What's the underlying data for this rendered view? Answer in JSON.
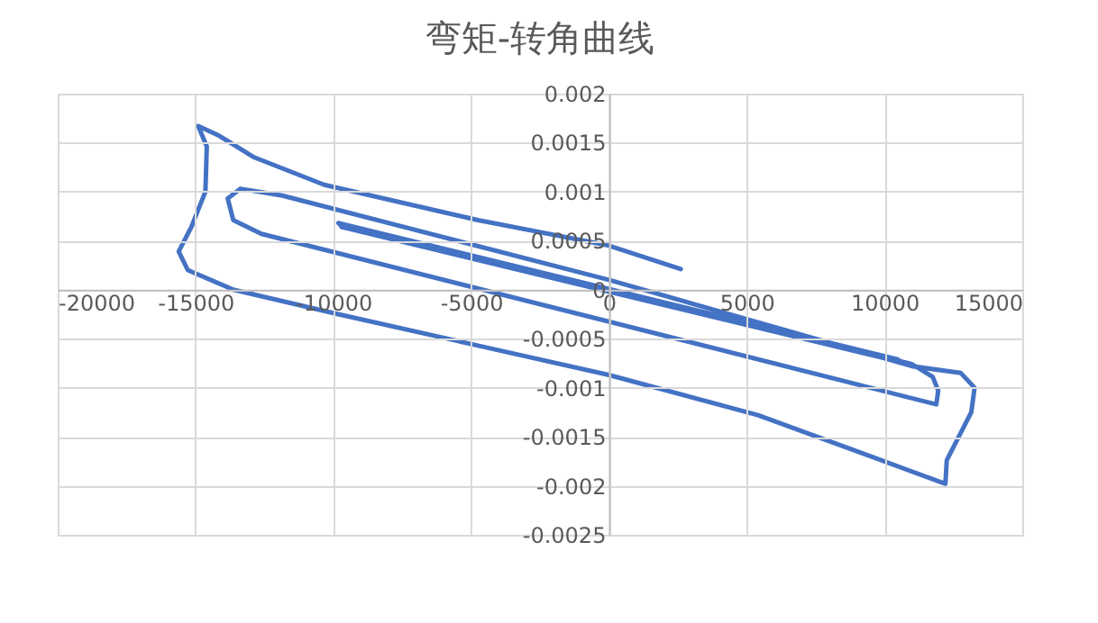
{
  "chart_data": {
    "type": "line",
    "title": "弯矩-转角曲线",
    "x": [
      0,
      10480,
      -9820,
      10740,
      -9700,
      10600,
      -9750,
      11000,
      11750,
      11950,
      11880,
      -12610,
      -13630,
      -13830,
      -13370,
      -11850,
      0,
      10990,
      12770,
      13270,
      13150,
      12640,
      12260,
      12210,
      9210,
      5410,
      0,
      -4750,
      -9820,
      -13630,
      -15280,
      -15610,
      -15150,
      -14640,
      -14590,
      -14900,
      -14140,
      -12870,
      -10330,
      -4750,
      0,
      2610
    ],
    "series": [
      {
        "color": "#4472c4",
        "values": [
          0,
          -0.00071,
          0.00068,
          -0.00075,
          0.00064,
          -0.00073,
          0.00066,
          -0.00076,
          -0.00089,
          -0.00103,
          -0.00117,
          0.00057,
          0.00071,
          0.00093,
          0.00103,
          0.00096,
          0.0001,
          -0.00078,
          -0.00085,
          -0.001,
          -0.00125,
          -0.00153,
          -0.00174,
          -0.00198,
          -0.00167,
          -0.00128,
          -0.00087,
          -0.00057,
          -0.00025,
          0,
          0.0002,
          0.00039,
          0.00064,
          0.001,
          0.00146,
          0.00167,
          0.00157,
          0.00135,
          0.00107,
          0.00071,
          0.00045,
          0.00021
        ]
      }
    ],
    "xlim": [
      -20000,
      15000
    ],
    "xticks": [
      -20000,
      -15000,
      -10000,
      -5000,
      0,
      5000,
      10000,
      15000
    ],
    "ylim": [
      -0.0025,
      0.002
    ],
    "yticks": [
      -0.0025,
      -0.002,
      -0.0015,
      -0.001,
      -0.0005,
      0,
      0.0005,
      0.001,
      0.0015,
      0.002
    ],
    "grid": true,
    "marker": "none",
    "line_style": "solid"
  }
}
